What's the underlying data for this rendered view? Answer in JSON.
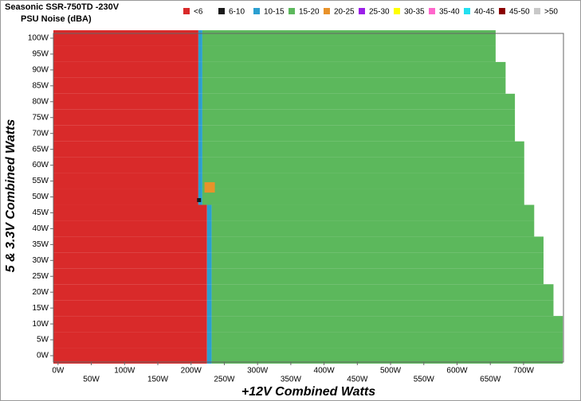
{
  "chart_data": {
    "type": "noise-map",
    "title": "Seasonic SSR-750TD -230V",
    "subtitle": "PSU Noise (dBA)",
    "x_label": "+12V Combined Watts",
    "y_label": "5 & 3.3V Combined Watts",
    "xlim": [
      -7,
      760
    ],
    "ylim": [
      -2,
      101.5
    ],
    "xticks": [
      {
        "value": 0,
        "label": "0W"
      },
      {
        "value": 50,
        "label": "50W"
      },
      {
        "value": 100,
        "label": "100W"
      },
      {
        "value": 150,
        "label": "150W"
      },
      {
        "value": 200,
        "label": "200W"
      },
      {
        "value": 250,
        "label": "250W"
      },
      {
        "value": 300,
        "label": "300W"
      },
      {
        "value": 350,
        "label": "350W"
      },
      {
        "value": 400,
        "label": "400W"
      },
      {
        "value": 450,
        "label": "450W"
      },
      {
        "value": 500,
        "label": "500W"
      },
      {
        "value": 550,
        "label": "550W"
      },
      {
        "value": 600,
        "label": "600W"
      },
      {
        "value": 650,
        "label": "650W"
      },
      {
        "value": 700,
        "label": "700W"
      }
    ],
    "yticks": [
      {
        "value": 0,
        "label": "0W"
      },
      {
        "value": 5,
        "label": "5W"
      },
      {
        "value": 10,
        "label": "10W"
      },
      {
        "value": 15,
        "label": "15W"
      },
      {
        "value": 20,
        "label": "20W"
      },
      {
        "value": 25,
        "label": "25W"
      },
      {
        "value": 30,
        "label": "30W"
      },
      {
        "value": 35,
        "label": "35W"
      },
      {
        "value": 40,
        "label": "40W"
      },
      {
        "value": 45,
        "label": "45W"
      },
      {
        "value": 50,
        "label": "50W"
      },
      {
        "value": 55,
        "label": "55W"
      },
      {
        "value": 60,
        "label": "60W"
      },
      {
        "value": 65,
        "label": "65W"
      },
      {
        "value": 70,
        "label": "70W"
      },
      {
        "value": 75,
        "label": "75W"
      },
      {
        "value": 80,
        "label": "80W"
      },
      {
        "value": 85,
        "label": "85W"
      },
      {
        "value": 90,
        "label": "90W"
      },
      {
        "value": 95,
        "label": "95W"
      },
      {
        "value": 100,
        "label": "100W"
      }
    ],
    "rows": [
      0,
      5,
      10,
      15,
      20,
      25,
      30,
      35,
      40,
      45,
      50,
      55,
      60,
      65,
      70,
      75,
      80,
      85,
      90,
      95,
      100
    ],
    "series": [
      {
        "name": "<6",
        "color": "#d92a2a",
        "values": [
          224,
          224,
          224,
          224,
          224,
          224,
          224,
          224,
          224,
          224,
          211,
          211,
          211,
          211,
          211,
          211,
          211,
          211,
          211,
          211,
          211
        ]
      },
      {
        "name": "6-10",
        "color": "#1a1a1a",
        "x": [
          212
        ],
        "y": [
          49
        ]
      },
      {
        "name": "10-15",
        "color": "#2b9fd0",
        "values": [
          231,
          231,
          231,
          231,
          231,
          231,
          231,
          231,
          231,
          231,
          217,
          217,
          217,
          217,
          217,
          217,
          217,
          217,
          217,
          217,
          217
        ]
      },
      {
        "name": "15-20",
        "color": "#5cb85c",
        "values": [
          759,
          759,
          759,
          745,
          745,
          730,
          730,
          730,
          716,
          716,
          701,
          701,
          701,
          701,
          687,
          687,
          687,
          673,
          673,
          658,
          658
        ]
      },
      {
        "name": "20-25",
        "color": "#e8922a",
        "x": [
          228
        ],
        "y": [
          53
        ]
      },
      {
        "name": "25-30",
        "color": "#9b1fe8"
      },
      {
        "name": "30-35",
        "color": "#ffff00"
      },
      {
        "name": "35-40",
        "color": "#ff66cc"
      },
      {
        "name": "40-45",
        "color": "#22e0f0"
      },
      {
        "name": "45-50",
        "color": "#8b0000"
      },
      {
        "name": ">50",
        "color": "#c8c8c8"
      }
    ]
  }
}
